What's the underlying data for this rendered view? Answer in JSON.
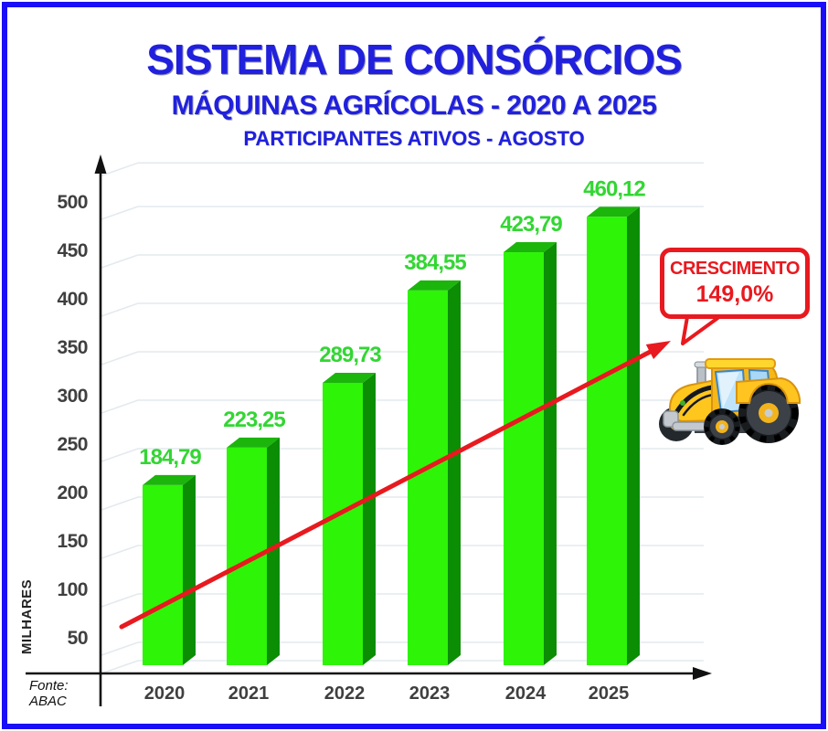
{
  "header": {
    "title": "SISTEMA DE CONSÓRCIOS",
    "subtitle": "MÁQUINAS AGRÍCOLAS - 2020 A 2025",
    "tagline": "PARTICIPANTES ATIVOS - AGOSTO"
  },
  "chart_data": {
    "type": "bar",
    "title": "SISTEMA DE CONSÓRCIOS",
    "subtitle": "MÁQUINAS AGRÍCOLAS - 2020 A 2025",
    "tagline": "PARTICIPANTES ATIVOS - AGOSTO",
    "categories": [
      "2020",
      "2021",
      "2022",
      "2023",
      "2024",
      "2025"
    ],
    "values": [
      184.79,
      223.25,
      289.73,
      384.55,
      423.79,
      460.12
    ],
    "value_labels": [
      "184,79",
      "223,25",
      "289,73",
      "384,55",
      "423,79",
      "460,12"
    ],
    "xlabel": "",
    "ylabel": "MILHARES",
    "yticks": [
      50,
      100,
      150,
      200,
      250,
      300,
      350,
      400,
      450,
      500
    ],
    "ylim": [
      0,
      545
    ],
    "grid": true,
    "legend": false,
    "style": "3d-bars",
    "annotation": {
      "line1": "CRESCIMENTO",
      "line2": "149,0%"
    },
    "trendline": {
      "description": "red growth arrow from 2020 toward upper right"
    }
  },
  "source": {
    "label": "Fonte: ABAC"
  },
  "icons": {
    "tractor": "tractor-illustration"
  },
  "colors": {
    "frame_border": "#1a0df7",
    "title_blue": "#2020dd",
    "bar_front": "#2ef408",
    "bar_side": "#0b8d04",
    "bar_top": "#1cb50c",
    "value_label": "#33d633",
    "axis_text": "#3f3f3f",
    "axis_line": "#111111",
    "grid_line": "#e3eaee",
    "trend_red": "#e8191f"
  }
}
